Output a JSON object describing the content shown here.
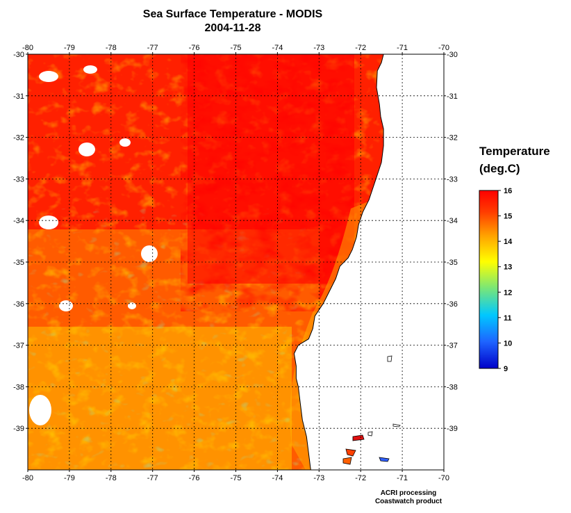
{
  "title": {
    "line1": "Sea Surface Temperature - MODIS",
    "line2": "2004-11-28"
  },
  "map": {
    "lon_range": [
      -80,
      -70
    ],
    "lat_range": [
      -40,
      -30
    ],
    "lon_ticks": [
      "-80",
      "-79",
      "-78",
      "-77",
      "-76",
      "-75",
      "-74",
      "-73",
      "-72",
      "-71",
      "-70"
    ],
    "lat_ticks": [
      "-30",
      "-31",
      "-32",
      "-33",
      "-34",
      "-35",
      "-36",
      "-37",
      "-38",
      "-39"
    ],
    "grid": "dotted",
    "land_color": "#ffffff",
    "coastline_color": "#000000"
  },
  "legend": {
    "title_line1": "Temperature",
    "title_line2": "(deg.C)",
    "ticks": [
      "16",
      "15",
      "14",
      "13",
      "12",
      "11",
      "10",
      "9"
    ],
    "range": [
      9,
      16
    ],
    "colors": [
      "#0000c8",
      "#1e64ff",
      "#00c8ff",
      "#78e678",
      "#ffff00",
      "#ffa000",
      "#ff3c00",
      "#ff0000"
    ]
  },
  "credit": {
    "line1": "ACRI processing",
    "line2": "Coastwatch product"
  }
}
